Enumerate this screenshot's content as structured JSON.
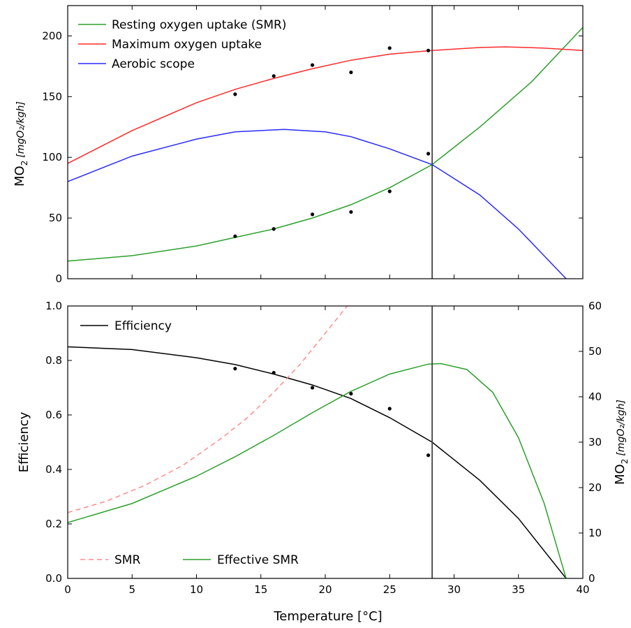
{
  "chart_data": [
    {
      "type": "line",
      "panel": "top",
      "xlim": [
        0,
        40
      ],
      "ylim": [
        0,
        225
      ],
      "x_ticks": [
        0,
        5,
        10,
        15,
        20,
        25,
        30,
        35,
        40
      ],
      "y_ticks": [
        0,
        50,
        100,
        150,
        200
      ],
      "ylabel_main": "MO",
      "ylabel_sub": "2",
      "ylabel_units": "[mgO₂/kgh]",
      "vline_x": 28.3,
      "legend_position": "top-left",
      "series": [
        {
          "name": "Resting oxygen uptake (SMR)",
          "color": "#2ca02c",
          "x": [
            0,
            5,
            10,
            13,
            16,
            19,
            22,
            25,
            28.3,
            32,
            36,
            40
          ],
          "y": [
            14.5,
            19,
            27,
            34,
            41,
            50,
            61,
            75,
            94,
            125,
            162,
            207
          ]
        },
        {
          "name": "Maximum oxygen uptake",
          "color": "#ff2a2a",
          "x": [
            0,
            5,
            10,
            13,
            16,
            19,
            22,
            25,
            28.3,
            32,
            34,
            37,
            40
          ],
          "y": [
            95,
            122,
            145,
            156,
            165,
            173,
            180,
            185,
            188,
            190.5,
            191,
            190,
            188
          ]
        },
        {
          "name": "Aerobic scope",
          "color": "#2a2aff",
          "x": [
            0,
            5,
            10,
            13,
            16.8,
            20,
            22,
            25,
            28.3,
            32,
            35,
            38.7
          ],
          "y": [
            80,
            101,
            115,
            121,
            123,
            121,
            117,
            107,
            94,
            69,
            41,
            0
          ]
        }
      ],
      "points": {
        "color": "#000000",
        "sets": [
          {
            "x": [
              13,
              16,
              19,
              22,
              25,
              28
            ],
            "y": [
              35,
              41,
              53,
              55,
              72,
              103
            ]
          },
          {
            "x": [
              13,
              16,
              19,
              22,
              25,
              28
            ],
            "y": [
              152,
              167,
              176,
              170,
              190,
              188
            ]
          }
        ]
      }
    },
    {
      "type": "line",
      "panel": "bottom",
      "xlim": [
        0,
        40
      ],
      "ylim_left": [
        0,
        1.0
      ],
      "ylim_right": [
        0,
        60
      ],
      "x_ticks": [
        0,
        5,
        10,
        15,
        20,
        25,
        30,
        35,
        40
      ],
      "y_ticks_left": [
        "0.0",
        "0.2",
        "0.4",
        "0.6",
        "0.8",
        "1.0"
      ],
      "y_ticks_right": [
        0,
        10,
        20,
        30,
        40,
        50,
        60
      ],
      "xlabel": "Temperature [°C]",
      "ylabel_left": "Efficiency",
      "ylabel_right_main": "MO",
      "ylabel_right_sub": "2",
      "ylabel_right_units": "[mgO₂/kgh]",
      "vline_x": 28.3,
      "series": [
        {
          "name": "Efficiency",
          "color": "#000000",
          "axis": "left",
          "dash": "solid",
          "x": [
            0,
            5,
            10,
            13,
            16,
            19,
            22,
            25,
            28.3,
            32,
            35,
            38.7
          ],
          "y": [
            0.85,
            0.84,
            0.81,
            0.785,
            0.75,
            0.71,
            0.66,
            0.59,
            0.5,
            0.36,
            0.22,
            0.0
          ]
        },
        {
          "name": "SMR",
          "color": "#ff8c8c",
          "axis": "right",
          "dash": "dashed",
          "x": [
            0,
            3,
            6,
            9,
            12,
            14,
            16,
            18,
            20,
            21.7
          ],
          "y": [
            14.5,
            17,
            20.5,
            25,
            31,
            35.5,
            41,
            47,
            54,
            60
          ]
        },
        {
          "name": "Effective SMR",
          "color": "#2ca02c",
          "axis": "right",
          "dash": "solid",
          "x": [
            0,
            5,
            10,
            13,
            16,
            19,
            22,
            25,
            28,
            29,
            31,
            33,
            35,
            37,
            38.7
          ],
          "y": [
            12.3,
            16.5,
            22.5,
            26.8,
            31.5,
            36.5,
            41.2,
            45.0,
            47.2,
            47.3,
            46.0,
            41.0,
            31.0,
            16.5,
            0
          ]
        }
      ],
      "points": {
        "color": "#000000",
        "axis": "left",
        "x": [
          13,
          16,
          19,
          22,
          25,
          28
        ],
        "y": [
          0.77,
          0.755,
          0.7,
          0.678,
          0.623,
          0.452
        ]
      },
      "legends": [
        {
          "position": "top-left",
          "entries": [
            "Efficiency"
          ]
        },
        {
          "position": "bottom-left",
          "entries": [
            "SMR",
            "Effective SMR"
          ]
        }
      ]
    }
  ]
}
